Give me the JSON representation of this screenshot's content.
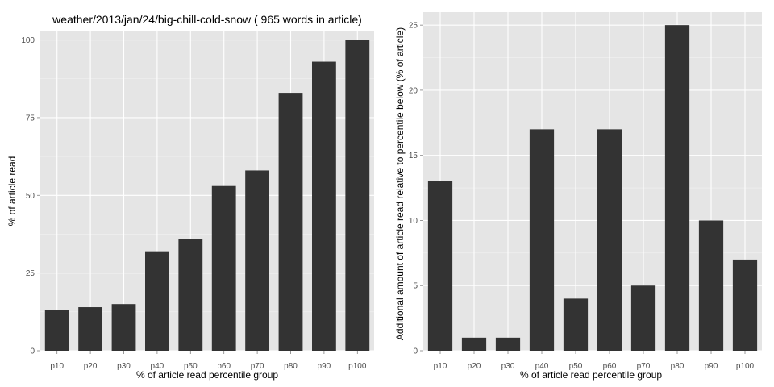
{
  "chart_data": [
    {
      "type": "bar",
      "title": "weather/2013/jan/24/big-chill-cold-snow ( 965 words in article)",
      "xlabel": "% of article read percentile group",
      "ylabel": "% of article read",
      "categories": [
        "p10",
        "p20",
        "p30",
        "p40",
        "p50",
        "p60",
        "p70",
        "p80",
        "p90",
        "p100"
      ],
      "values": [
        13,
        14,
        15,
        32,
        36,
        53,
        58,
        83,
        93,
        100
      ],
      "ylim": [
        0,
        103
      ],
      "yticks": [
        0,
        25,
        50,
        75,
        100
      ],
      "grid": true,
      "bar_color": "#333333",
      "panel_color": "#e5e5e5"
    },
    {
      "type": "bar",
      "title": "",
      "xlabel": "% of article read percentile group",
      "ylabel": "Additional amount of article read relative to percentile below (% of article)",
      "categories": [
        "p10",
        "p20",
        "p30",
        "p40",
        "p50",
        "p60",
        "p70",
        "p80",
        "p90",
        "p100"
      ],
      "values": [
        13,
        1,
        1,
        17,
        4,
        17,
        5,
        25,
        10,
        7
      ],
      "ylim": [
        0,
        26
      ],
      "yticks": [
        0,
        5,
        10,
        15,
        20,
        25
      ],
      "grid": true,
      "bar_color": "#333333",
      "panel_color": "#e5e5e5"
    }
  ]
}
